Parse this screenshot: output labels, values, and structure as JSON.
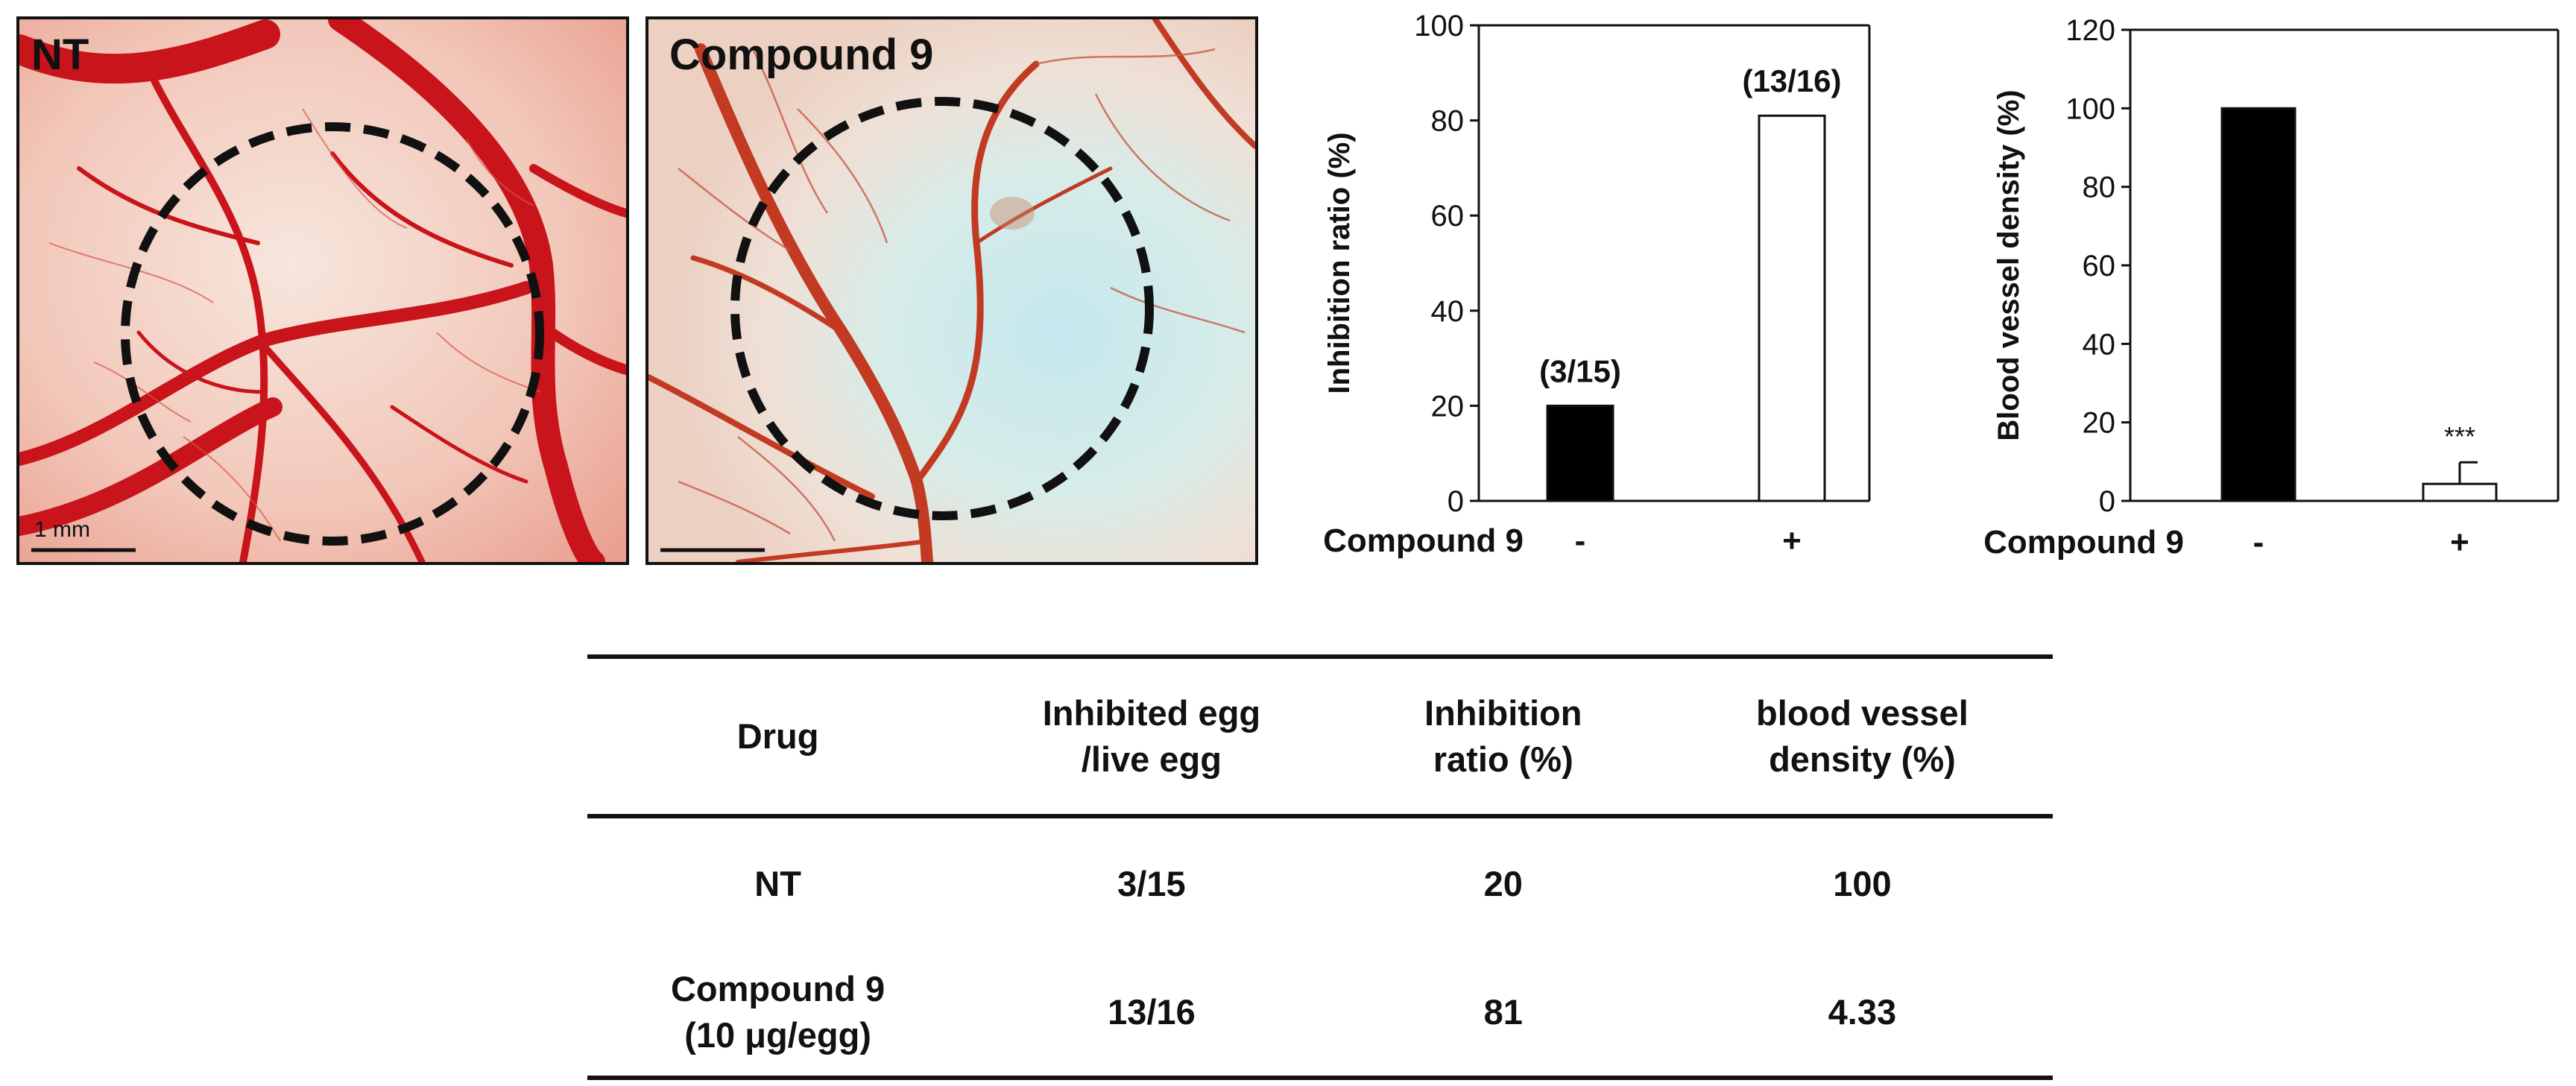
{
  "images": [
    {
      "label": "NT",
      "scale_bar_label": "1 mm"
    },
    {
      "label": "Compound 9",
      "scale_bar_label": ""
    }
  ],
  "chart_data": [
    {
      "type": "bar",
      "ylabel": "Inhibition ratio (%)",
      "xlabel": "Compound 9",
      "categories": [
        "-",
        "+"
      ],
      "values": [
        20,
        81
      ],
      "bar_fills": [
        "#000000",
        "#ffffff"
      ],
      "data_labels": [
        "(3/15)",
        "(13/16)"
      ],
      "ylim": [
        0,
        100
      ],
      "yticks": [
        0,
        20,
        40,
        60,
        80,
        100
      ]
    },
    {
      "type": "bar",
      "ylabel": "Blood vessel density (%)",
      "xlabel": "Compound 9",
      "categories": [
        "-",
        "+"
      ],
      "values": [
        100,
        4.33
      ],
      "error": [
        0,
        5.5
      ],
      "bar_fills": [
        "#000000",
        "#ffffff"
      ],
      "annotations": [
        "",
        "***"
      ],
      "ylim": [
        0,
        120
      ],
      "yticks": [
        0,
        20,
        40,
        60,
        80,
        100,
        120
      ]
    }
  ],
  "table": {
    "headers": [
      [
        "Drug"
      ],
      [
        "Inhibited egg",
        "/live egg"
      ],
      [
        "Inhibition",
        "ratio (%)"
      ],
      [
        "blood vessel",
        "density (%)"
      ]
    ],
    "rows": [
      {
        "drug": [
          "NT"
        ],
        "inhibited": "3/15",
        "ratio": "20",
        "density": "100"
      },
      {
        "drug": [
          "Compound 9",
          "(10 μg/egg)"
        ],
        "inhibited": "13/16",
        "ratio": "81",
        "density": "4.33"
      }
    ]
  },
  "colors": {
    "vessel_red": "#c8141a",
    "membrane_pink": "#f3cbc2",
    "membrane_blue": "#bfe4ea",
    "axis": "#111111"
  }
}
